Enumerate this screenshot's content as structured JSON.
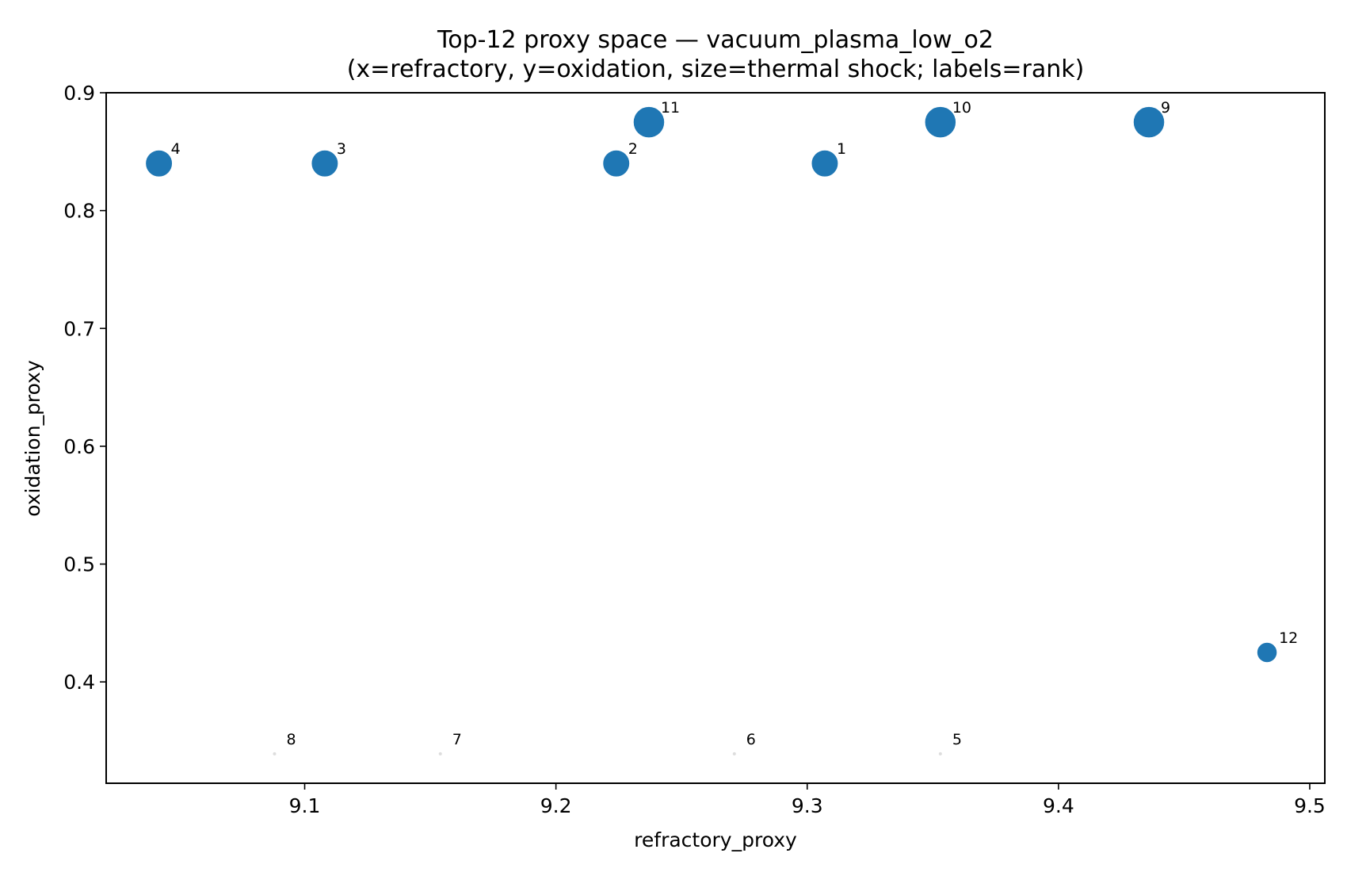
{
  "chart_data": {
    "type": "scatter",
    "title": "Top-12 proxy space — vacuum_plasma_low_o2",
    "subtitle": "(x=refractory, y=oxidation, size=thermal shock; labels=rank)",
    "xlabel": "refractory_proxy",
    "ylabel": "oxidation_proxy",
    "xlim": [
      9.021,
      9.506
    ],
    "ylim": [
      0.314,
      0.9
    ],
    "xticks": [
      9.1,
      9.2,
      9.3,
      9.4,
      9.5
    ],
    "xtick_labels": [
      "9.1",
      "9.2",
      "9.3",
      "9.4",
      "9.5"
    ],
    "yticks": [
      0.4,
      0.5,
      0.6,
      0.7,
      0.8,
      0.9
    ],
    "ytick_labels": [
      "0.4",
      "0.5",
      "0.6",
      "0.7",
      "0.8",
      "0.9"
    ],
    "grid": false,
    "marker_color": "#1f77b4",
    "size_encoding": "thermal shock",
    "points": [
      {
        "rank": "1",
        "x": 9.307,
        "y": 0.84,
        "size": 0.72
      },
      {
        "rank": "2",
        "x": 9.224,
        "y": 0.84,
        "size": 0.72
      },
      {
        "rank": "3",
        "x": 9.108,
        "y": 0.84,
        "size": 0.72
      },
      {
        "rank": "4",
        "x": 9.042,
        "y": 0.84,
        "size": 0.72
      },
      {
        "rank": "5",
        "x": 9.353,
        "y": 0.339,
        "size": 0.0
      },
      {
        "rank": "6",
        "x": 9.271,
        "y": 0.339,
        "size": 0.0
      },
      {
        "rank": "7",
        "x": 9.154,
        "y": 0.339,
        "size": 0.0
      },
      {
        "rank": "8",
        "x": 9.088,
        "y": 0.339,
        "size": 0.0
      },
      {
        "rank": "9",
        "x": 9.436,
        "y": 0.875,
        "size": 1.0
      },
      {
        "rank": "10",
        "x": 9.353,
        "y": 0.875,
        "size": 1.0
      },
      {
        "rank": "11",
        "x": 9.237,
        "y": 0.875,
        "size": 1.0
      },
      {
        "rank": "12",
        "x": 9.483,
        "y": 0.425,
        "size": 0.3
      }
    ]
  }
}
